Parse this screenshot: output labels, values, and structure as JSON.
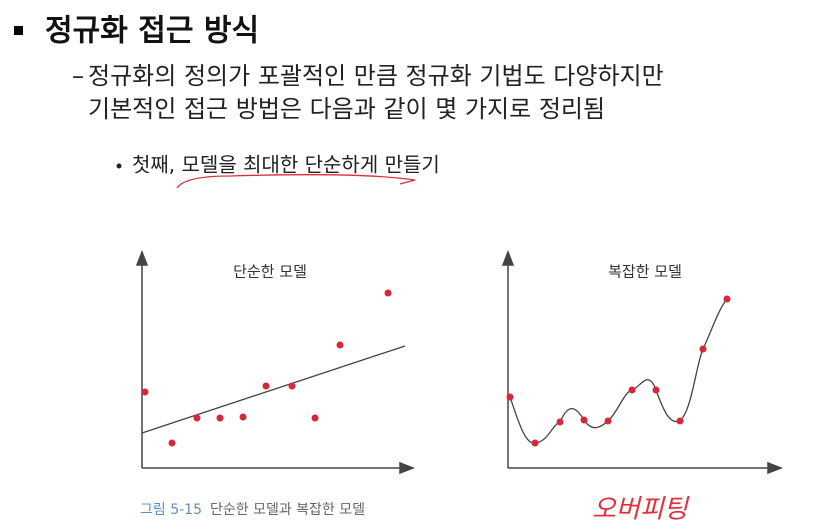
{
  "header": {
    "title": "정규화 접근 방식"
  },
  "body": {
    "points": [
      {
        "lines": [
          "정규화의 정의가 포괄적인 만큼 정규화 기법도 다양하지만",
          "기본적인 접근 방법은 다음과 같이 몇 가지로 정리됨"
        ]
      },
      {
        "text": "첫째, 모델을 최대한 단순하게 만들기"
      }
    ]
  },
  "figure": {
    "panels": [
      {
        "title": "단순한 모델"
      },
      {
        "title": "복잡한 모델"
      }
    ],
    "caption": {
      "number": "그림 5-15",
      "text": "단순한 모델과 복잡한 모델"
    }
  },
  "annotation": {
    "text": "오버피팅"
  }
}
